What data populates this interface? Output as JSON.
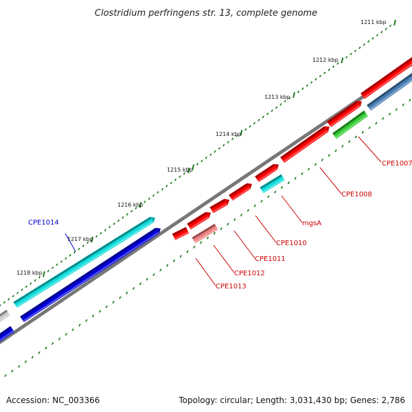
{
  "title": "Clostridium perfringens str. 13, complete genome",
  "footer": {
    "accession": "Accession: NC_003366",
    "summary": "Topology: circular; Length: 3,031,430 bp; Genes: 2,786"
  },
  "colors": {
    "backbone": "#777777",
    "ticks": "#1a7a1a",
    "label_red": "#cc0000",
    "label_blue": "#0000cc",
    "red": "#ff0000",
    "cyan": "#11dddd",
    "blue": "#0000dd",
    "green": "#33cc33",
    "steelblue": "#4a7fb5",
    "pink": "#ee8080",
    "gray": "#cccccc"
  },
  "ticks": [
    {
      "label": "1211 kbp"
    },
    {
      "label": "1212 kbp"
    },
    {
      "label": "1213 kbp"
    },
    {
      "label": "1214 kbp"
    },
    {
      "label": "1215 kbp"
    },
    {
      "label": "1216 kbp"
    },
    {
      "label": "1217 kbp"
    },
    {
      "label": "1218 kbp"
    }
  ],
  "genes": [
    {
      "label": "CPE1007",
      "color": "red"
    },
    {
      "label": "CPE1008",
      "color": "red"
    },
    {
      "label": "mgsA",
      "color": "cyan"
    },
    {
      "label": "CPE1010",
      "color": "red"
    },
    {
      "label": "CPE1011",
      "color": "red"
    },
    {
      "label": "CPE1012",
      "color": "pink"
    },
    {
      "label": "CPE1013",
      "color": "red"
    },
    {
      "label": "CPE1014",
      "color": "cyan"
    }
  ]
}
